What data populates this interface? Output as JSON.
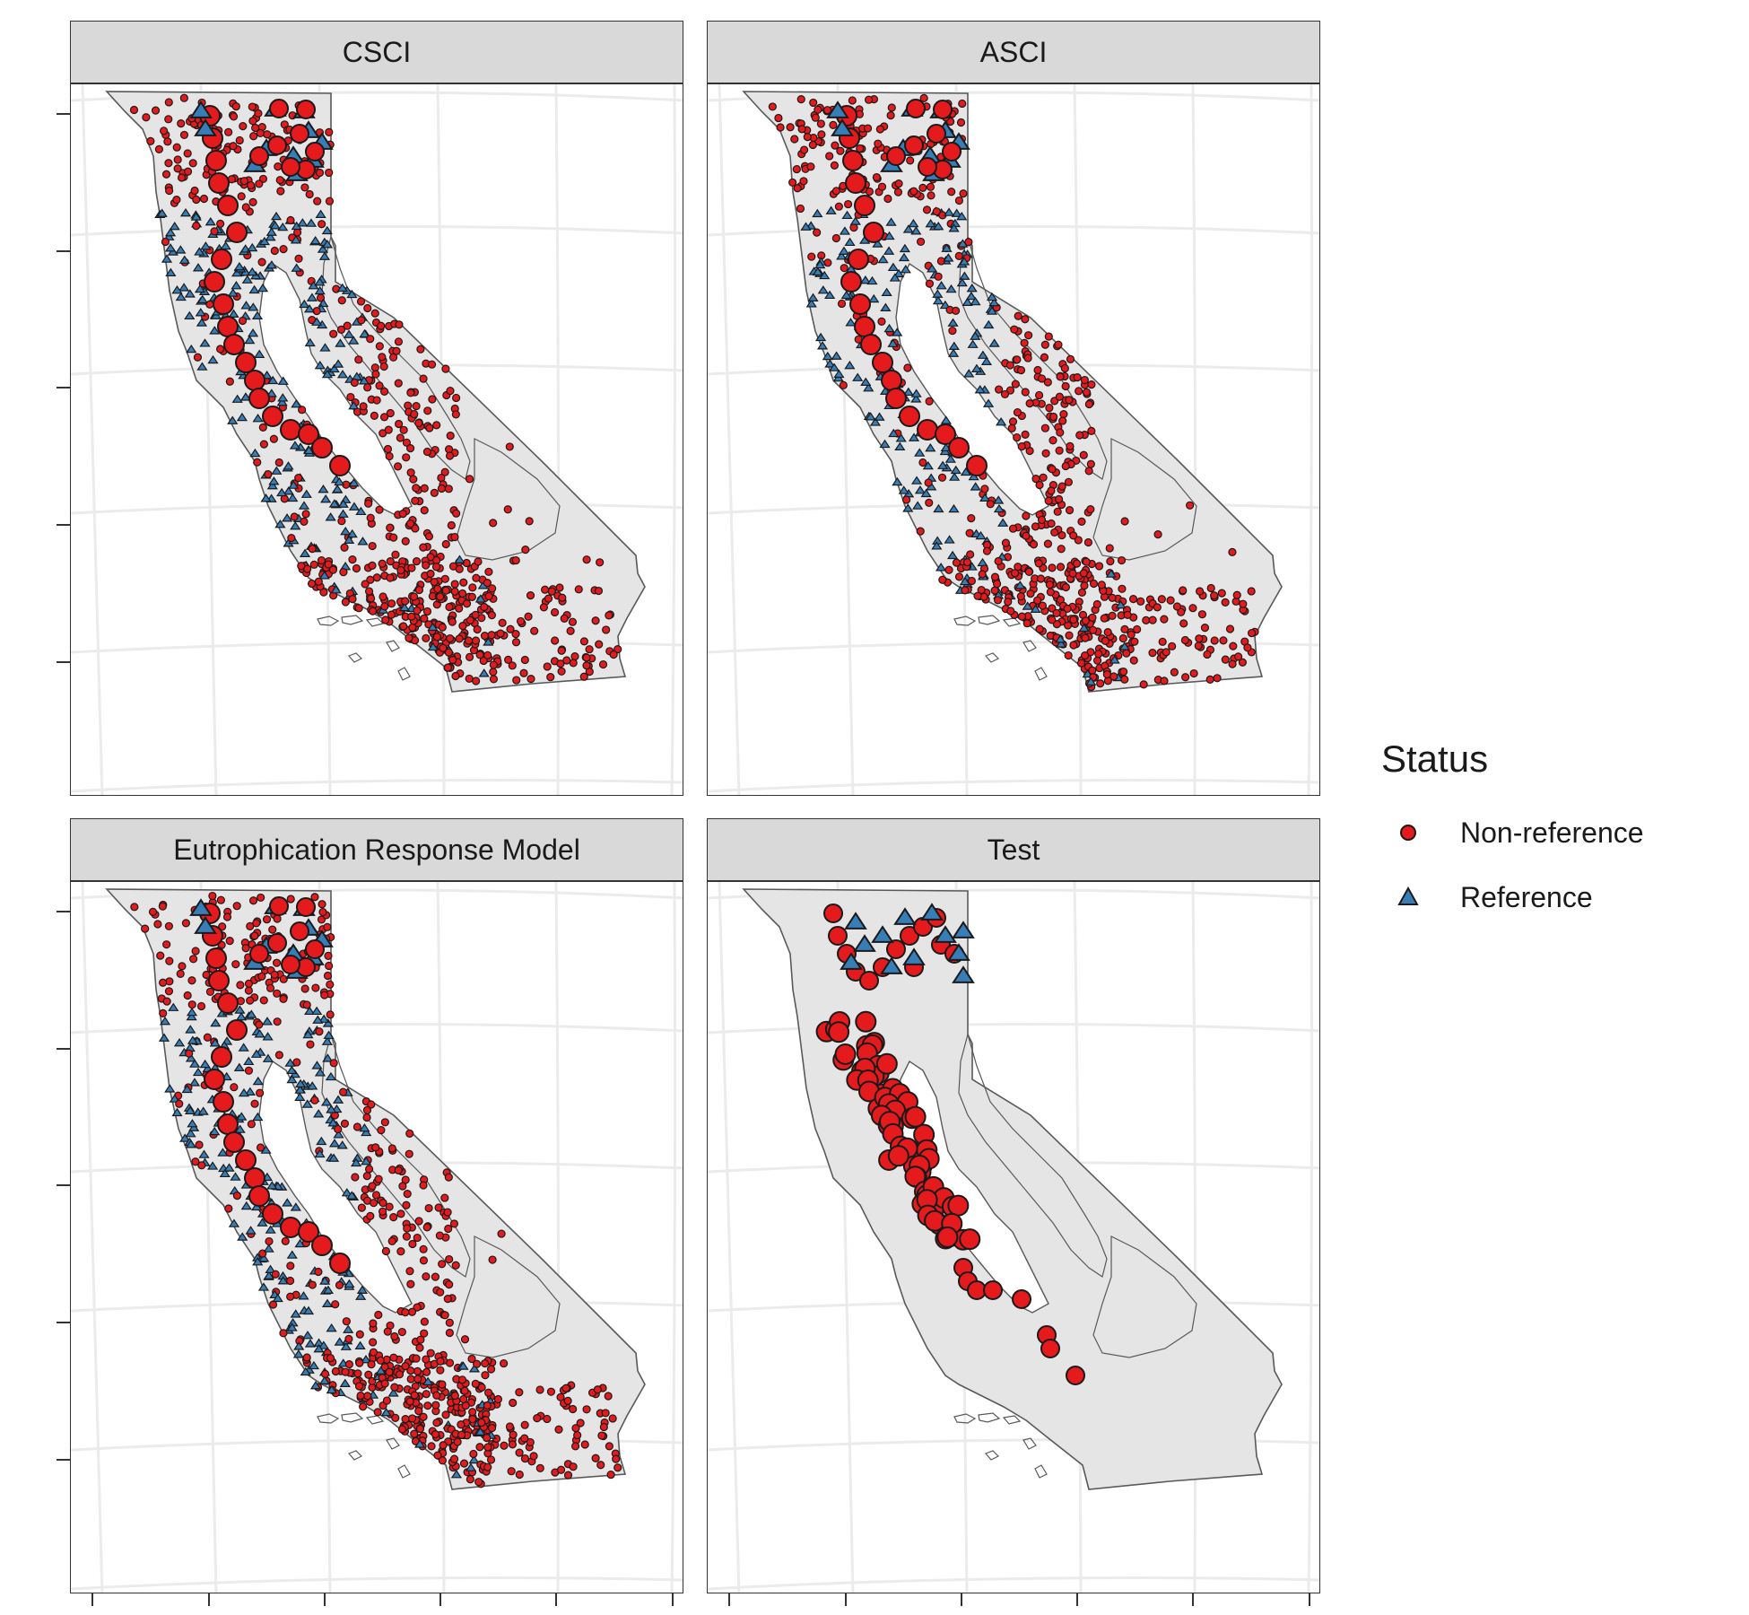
{
  "panels": [
    {
      "id": "csci",
      "title": "CSCI",
      "show_all_points": true,
      "big_central_valley": "partial"
    },
    {
      "id": "asci",
      "title": "ASCI",
      "show_all_points": true,
      "big_central_valley": "partial"
    },
    {
      "id": "erm",
      "title": "Eutrophication Response Model",
      "show_all_points": true,
      "big_central_valley": "partial"
    },
    {
      "id": "test",
      "title": "Test",
      "show_all_points": false,
      "big_central_valley": "full"
    }
  ],
  "legend": {
    "title": "Status",
    "items": [
      {
        "label": "Non-reference",
        "shape": "circle",
        "color": "#e41a1c"
      },
      {
        "label": "Reference",
        "shape": "triangle",
        "color": "#377eb8"
      }
    ]
  },
  "colors": {
    "land": "#e5e5e5",
    "outline": "#595959",
    "grid": "#ebebeb",
    "nonref": "#e41a1c",
    "ref": "#377eb8",
    "stroke": "#1a1a1a",
    "strip": "#d9d9d9"
  }
}
